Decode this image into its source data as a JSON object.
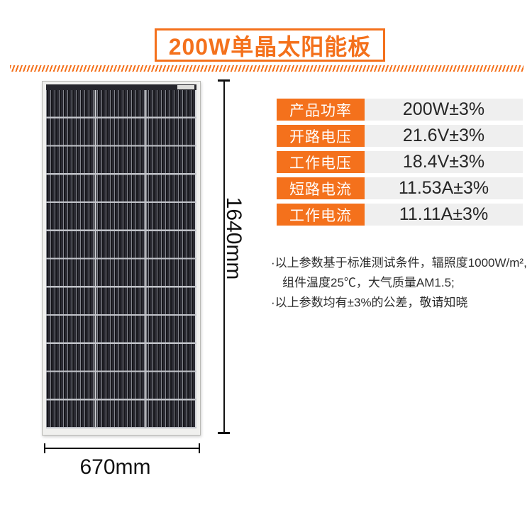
{
  "title": {
    "text": "200W单晶太阳能板"
  },
  "colors": {
    "accent_orange": "#f4711c",
    "value_cell_bg": "#efefef",
    "text_dark": "#262626"
  },
  "specs": {
    "rows": [
      {
        "label": "产品功率",
        "value": "200W±3%"
      },
      {
        "label": "开路电压",
        "value": "21.6V±3%"
      },
      {
        "label": "工作电压",
        "value": "18.4V±3%"
      },
      {
        "label": "短路电流",
        "value": "11.53A±3%"
      },
      {
        "label": "工作电流",
        "value": "11.11A±3%"
      }
    ]
  },
  "notes": {
    "line1": "·以上参数基于标准测试条件，辐照度1000W/m²,",
    "line2": "组件温度25℃，大气质量AM1.5;",
    "line3": "·以上参数均有±3%的公差，敬请知晓"
  },
  "dimensions": {
    "height_label": "1640mm",
    "width_label": "670mm"
  }
}
